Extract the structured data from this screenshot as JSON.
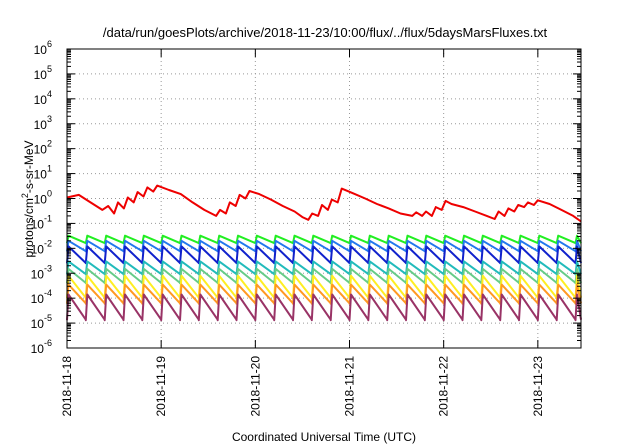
{
  "chart_data": {
    "type": "line",
    "title": "/data/run/goesPlots/archive/2018-11-23/10:00/flux/../flux/5daysMarsFluxes.txt",
    "xlabel": "Coordinated Universal Time (UTC)",
    "ylabel": {
      "base": "protons/cm",
      "sup": "2",
      "rest": "-s-sr-MeV"
    },
    "y_scale": "log",
    "ylim": [
      1e-06,
      1000000.0
    ],
    "y_ticks": [
      {
        "value": 1e-06,
        "base": "10",
        "exp": "-6"
      },
      {
        "value": 1e-05,
        "base": "10",
        "exp": "-5"
      },
      {
        "value": 0.0001,
        "base": "10",
        "exp": "-4"
      },
      {
        "value": 0.001,
        "base": "10",
        "exp": "-3"
      },
      {
        "value": 0.01,
        "base": "10",
        "exp": "-2"
      },
      {
        "value": 0.1,
        "base": "10",
        "exp": "-1"
      },
      {
        "value": 1,
        "base": "10",
        "exp": "0"
      },
      {
        "value": 10,
        "base": "10",
        "exp": "1"
      },
      {
        "value": 100,
        "base": "10",
        "exp": "2"
      },
      {
        "value": 1000,
        "base": "10",
        "exp": "3"
      },
      {
        "value": 10000,
        "base": "10",
        "exp": "4"
      },
      {
        "value": 100000,
        "base": "10",
        "exp": "5"
      },
      {
        "value": 1000000,
        "base": "10",
        "exp": "6"
      }
    ],
    "xlim": [
      "2018-11-18 00:00",
      "2018-11-23 11:00"
    ],
    "x_ticks": [
      "2018-11-18",
      "2018-11-19",
      "2018-11-20",
      "2018-11-21",
      "2018-11-22",
      "2018-11-23"
    ],
    "grid": true,
    "legend": "none",
    "series": [
      {
        "color": "#ee0000",
        "points": [
          [
            "2018-11-18 00:00",
            1.1
          ],
          [
            "2018-11-18 03:00",
            1.4
          ],
          [
            "2018-11-18 06:00",
            0.7
          ],
          [
            "2018-11-18 09:00",
            0.35
          ],
          [
            "2018-11-18 10:30",
            0.5
          ],
          [
            "2018-11-18 12:00",
            0.25
          ],
          [
            "2018-11-18 13:00",
            0.7
          ],
          [
            "2018-11-18 14:30",
            0.4
          ],
          [
            "2018-11-18 15:30",
            1.1
          ],
          [
            "2018-11-18 17:00",
            0.7
          ],
          [
            "2018-11-18 18:00",
            1.8
          ],
          [
            "2018-11-18 19:30",
            1.2
          ],
          [
            "2018-11-18 20:30",
            2.8
          ],
          [
            "2018-11-18 22:00",
            1.9
          ],
          [
            "2018-11-18 23:00",
            3.3
          ],
          [
            "2018-11-19 02:00",
            2.2
          ],
          [
            "2018-11-19 05:00",
            1.5
          ],
          [
            "2018-11-19 08:00",
            0.7
          ],
          [
            "2018-11-19 11:00",
            0.35
          ],
          [
            "2018-11-19 14:00",
            0.2
          ],
          [
            "2018-11-19 15:00",
            0.35
          ],
          [
            "2018-11-19 16:30",
            0.25
          ],
          [
            "2018-11-19 17:30",
            0.7
          ],
          [
            "2018-11-19 19:00",
            0.5
          ],
          [
            "2018-11-19 20:00",
            1.4
          ],
          [
            "2018-11-19 21:30",
            1.0
          ],
          [
            "2018-11-19 22:30",
            2.0
          ],
          [
            "2018-11-20 01:00",
            1.5
          ],
          [
            "2018-11-20 04:00",
            0.9
          ],
          [
            "2018-11-20 07:00",
            0.5
          ],
          [
            "2018-11-20 10:00",
            0.3
          ],
          [
            "2018-11-20 12:00",
            0.18
          ],
          [
            "2018-11-20 13:30",
            0.14
          ],
          [
            "2018-11-20 14:30",
            0.25
          ],
          [
            "2018-11-20 16:00",
            0.2
          ],
          [
            "2018-11-20 17:00",
            0.55
          ],
          [
            "2018-11-20 18:30",
            0.35
          ],
          [
            "2018-11-20 19:30",
            0.9
          ],
          [
            "2018-11-20 21:00",
            0.7
          ],
          [
            "2018-11-20 22:00",
            2.5
          ],
          [
            "2018-11-21 01:00",
            1.6
          ],
          [
            "2018-11-21 04:00",
            1.0
          ],
          [
            "2018-11-21 07:00",
            0.6
          ],
          [
            "2018-11-21 10:00",
            0.4
          ],
          [
            "2018-11-21 13:00",
            0.25
          ],
          [
            "2018-11-21 16:00",
            0.2
          ],
          [
            "2018-11-21 17:00",
            0.28
          ],
          [
            "2018-11-21 18:30",
            0.2
          ],
          [
            "2018-11-21 19:30",
            0.3
          ],
          [
            "2018-11-21 21:00",
            0.2
          ],
          [
            "2018-11-21 22:00",
            0.45
          ],
          [
            "2018-11-21 23:30",
            0.35
          ],
          [
            "2018-11-22 00:30",
            0.8
          ],
          [
            "2018-11-22 02:00",
            0.6
          ],
          [
            "2018-11-22 05:00",
            0.45
          ],
          [
            "2018-11-22 08:00",
            0.3
          ],
          [
            "2018-11-22 11:00",
            0.2
          ],
          [
            "2018-11-22 13:00",
            0.15
          ],
          [
            "2018-11-22 14:00",
            0.3
          ],
          [
            "2018-11-22 15:30",
            0.2
          ],
          [
            "2018-11-22 16:30",
            0.4
          ],
          [
            "2018-11-22 18:00",
            0.3
          ],
          [
            "2018-11-22 19:00",
            0.55
          ],
          [
            "2018-11-22 20:30",
            0.45
          ],
          [
            "2018-11-22 21:30",
            0.7
          ],
          [
            "2018-11-22 23:00",
            0.55
          ],
          [
            "2018-11-23 00:00",
            0.85
          ],
          [
            "2018-11-23 03:00",
            0.6
          ],
          [
            "2018-11-23 06:00",
            0.35
          ],
          [
            "2018-11-23 09:00",
            0.2
          ],
          [
            "2018-11-23 11:00",
            0.12
          ]
        ]
      },
      {
        "color": "#22ee22",
        "sawtooth": {
          "peak": 0.032,
          "trough": 0.016
        }
      },
      {
        "color": "#2277ee",
        "sawtooth": {
          "peak": 0.02,
          "trough": 0.0075
        }
      },
      {
        "color": "#1122cc",
        "sawtooth": {
          "peak": 0.012,
          "trough": 0.0025
        }
      },
      {
        "color": "#22bbbb",
        "sawtooth": {
          "peak": 0.003,
          "trough": 0.0009
        }
      },
      {
        "color": "#66cc88",
        "sawtooth": {
          "peak": 0.0015,
          "trough": 0.0004
        }
      },
      {
        "color": "#ffee22",
        "sawtooth": {
          "peak": 0.0008,
          "trough": 0.0001
        }
      },
      {
        "color": "#ff9922",
        "sawtooth": {
          "peak": 0.00035,
          "trough": 6e-05
        }
      },
      {
        "color": "#993366",
        "sawtooth": {
          "peak": 0.00014,
          "trough": 1.3e-05
        }
      }
    ],
    "sawtooth_period_hours": 4.8
  }
}
